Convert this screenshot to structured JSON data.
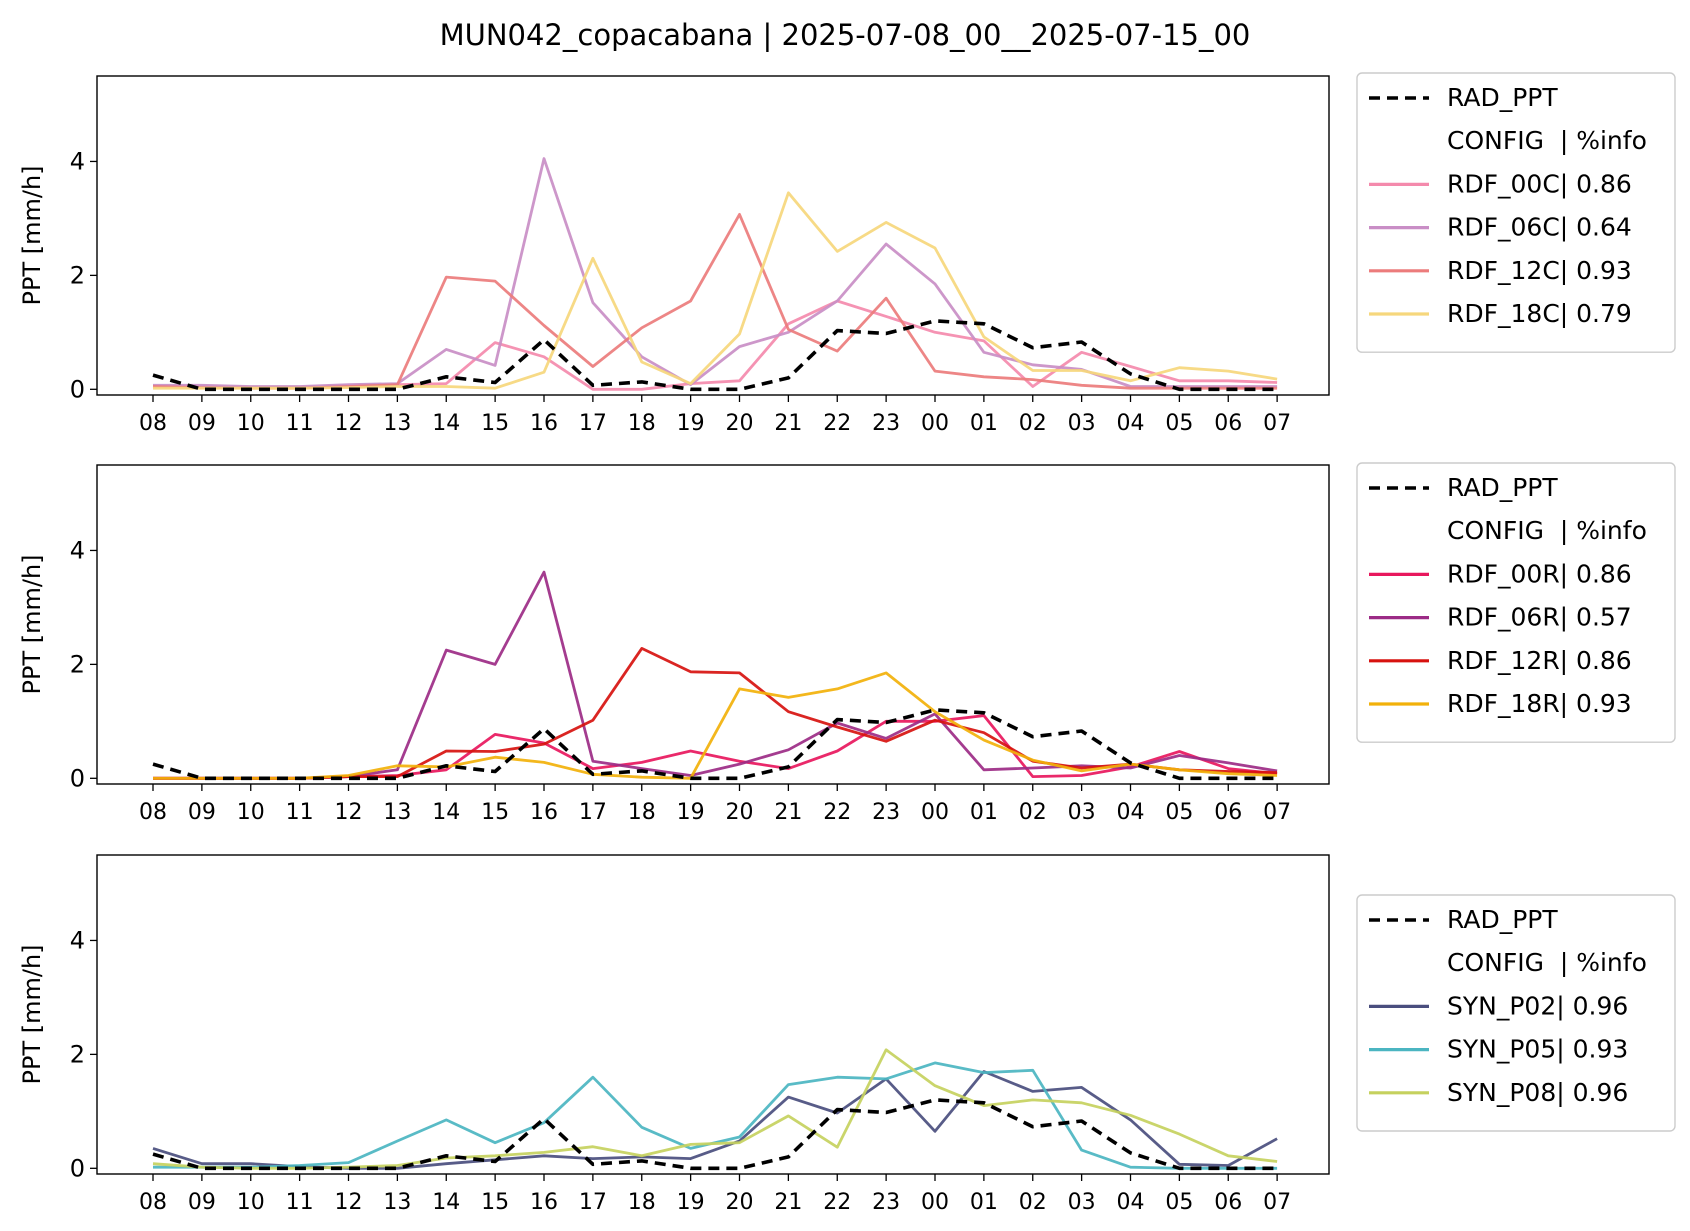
{
  "title": "MUN042_copacabana | 2025-07-08_00__2025-07-15_00",
  "chart_data": [
    {
      "type": "line",
      "ylabel": "PPT [mm/h]",
      "ylim": [
        -0.1,
        5.5
      ],
      "yticks": [
        0,
        2,
        4
      ],
      "categories": [
        "08",
        "09",
        "10",
        "11",
        "12",
        "13",
        "14",
        "15",
        "16",
        "17",
        "18",
        "19",
        "20",
        "21",
        "22",
        "23",
        "00",
        "01",
        "02",
        "03",
        "04",
        "05",
        "06",
        "07"
      ],
      "legend_header": "CONFIG  | %info",
      "legend_position": "outside-right",
      "series": [
        {
          "name": "RAD_PPT",
          "color": "#000000",
          "dashed": true,
          "values": [
            0.25,
            0.0,
            0.0,
            0.0,
            0.0,
            0.0,
            0.22,
            0.12,
            0.87,
            0.07,
            0.13,
            0.0,
            0.0,
            0.2,
            1.03,
            0.98,
            1.2,
            1.15,
            0.73,
            0.83,
            0.27,
            0.0,
            0.0,
            0.0
          ]
        },
        {
          "name": "RDF_00C| 0.86",
          "color": "#f48aac",
          "values": [
            0.05,
            0.05,
            0.03,
            0.03,
            0.06,
            0.08,
            0.1,
            0.82,
            0.57,
            0.0,
            0.0,
            0.1,
            0.15,
            1.15,
            1.55,
            1.28,
            1.0,
            0.85,
            0.05,
            0.65,
            0.4,
            0.15,
            0.15,
            0.12
          ]
        },
        {
          "name": "RDF_06C| 0.64",
          "color": "#c98ec6",
          "values": [
            0.07,
            0.07,
            0.05,
            0.05,
            0.08,
            0.1,
            0.7,
            0.42,
            4.05,
            1.52,
            0.57,
            0.08,
            0.75,
            1.0,
            1.55,
            2.55,
            1.85,
            0.65,
            0.43,
            0.35,
            0.05,
            0.05,
            0.05,
            0.05
          ]
        },
        {
          "name": "RDF_12C| 0.93",
          "color": "#ec7c7c",
          "values": [
            0.05,
            0.03,
            0.02,
            0.02,
            0.05,
            0.08,
            1.97,
            1.9,
            1.12,
            0.4,
            1.08,
            1.55,
            3.07,
            1.05,
            0.67,
            1.6,
            0.32,
            0.22,
            0.17,
            0.07,
            0.02,
            0.02,
            0.02,
            0.02
          ]
        },
        {
          "name": "RDF_18C| 0.79",
          "color": "#f6d77c",
          "values": [
            0.02,
            0.02,
            0.02,
            0.02,
            0.03,
            0.05,
            0.05,
            0.02,
            0.3,
            2.3,
            0.48,
            0.1,
            0.97,
            3.45,
            2.42,
            2.93,
            2.48,
            0.92,
            0.33,
            0.33,
            0.15,
            0.38,
            0.32,
            0.18
          ]
        }
      ]
    },
    {
      "type": "line",
      "ylabel": "PPT [mm/h]",
      "ylim": [
        -0.1,
        5.5
      ],
      "yticks": [
        0,
        2,
        4
      ],
      "categories": [
        "08",
        "09",
        "10",
        "11",
        "12",
        "13",
        "14",
        "15",
        "16",
        "17",
        "18",
        "19",
        "20",
        "21",
        "22",
        "23",
        "00",
        "01",
        "02",
        "03",
        "04",
        "05",
        "06",
        "07"
      ],
      "legend_header": "CONFIG  | %info",
      "legend_position": "outside-right",
      "series": [
        {
          "name": "RAD_PPT",
          "color": "#000000",
          "dashed": true,
          "values": [
            0.25,
            0.0,
            0.0,
            0.0,
            0.0,
            0.0,
            0.22,
            0.12,
            0.87,
            0.07,
            0.13,
            0.0,
            0.0,
            0.2,
            1.03,
            0.98,
            1.2,
            1.15,
            0.73,
            0.83,
            0.27,
            0.0,
            0.0,
            0.0
          ]
        },
        {
          "name": "RDF_00R| 0.86",
          "color": "#e8175d",
          "values": [
            0.0,
            0.0,
            0.0,
            0.0,
            0.03,
            0.05,
            0.15,
            0.77,
            0.62,
            0.17,
            0.28,
            0.48,
            0.3,
            0.17,
            0.48,
            1.0,
            1.0,
            1.1,
            0.03,
            0.05,
            0.2,
            0.47,
            0.17,
            0.08
          ]
        },
        {
          "name": "RDF_06R| 0.57",
          "color": "#9c2b86",
          "values": [
            0.0,
            0.0,
            0.0,
            0.0,
            0.03,
            0.15,
            2.25,
            2.0,
            3.62,
            0.3,
            0.17,
            0.05,
            0.25,
            0.5,
            0.97,
            0.7,
            1.13,
            0.15,
            0.18,
            0.22,
            0.18,
            0.4,
            0.27,
            0.13
          ]
        },
        {
          "name": "RDF_12R| 0.86",
          "color": "#d7120f",
          "values": [
            0.0,
            0.0,
            0.0,
            0.0,
            0.03,
            0.03,
            0.48,
            0.47,
            0.6,
            1.02,
            2.28,
            1.87,
            1.85,
            1.17,
            0.9,
            0.65,
            1.02,
            0.8,
            0.3,
            0.18,
            0.25,
            0.15,
            0.12,
            0.1
          ]
        },
        {
          "name": "RDF_18R| 0.93",
          "color": "#f2b10a",
          "values": [
            0.0,
            0.0,
            0.0,
            0.0,
            0.05,
            0.22,
            0.2,
            0.37,
            0.28,
            0.07,
            0.02,
            0.0,
            1.57,
            1.42,
            1.57,
            1.85,
            1.17,
            0.67,
            0.32,
            0.13,
            0.25,
            0.15,
            0.08,
            0.05
          ]
        }
      ]
    },
    {
      "type": "line",
      "ylabel": "PPT [mm/h]",
      "ylim": [
        -0.1,
        5.5
      ],
      "yticks": [
        0,
        2,
        4
      ],
      "categories": [
        "08",
        "09",
        "10",
        "11",
        "12",
        "13",
        "14",
        "15",
        "16",
        "17",
        "18",
        "19",
        "20",
        "21",
        "22",
        "23",
        "00",
        "01",
        "02",
        "03",
        "04",
        "05",
        "06",
        "07"
      ],
      "legend_header": "CONFIG  | %info",
      "legend_position": "outside-right",
      "series": [
        {
          "name": "RAD_PPT",
          "color": "#000000",
          "dashed": true,
          "values": [
            0.25,
            0.0,
            0.0,
            0.0,
            0.0,
            0.0,
            0.22,
            0.12,
            0.87,
            0.07,
            0.13,
            0.0,
            0.0,
            0.2,
            1.03,
            0.98,
            1.2,
            1.15,
            0.73,
            0.83,
            0.27,
            0.0,
            0.0,
            0.0
          ]
        },
        {
          "name": "SYN_P02| 0.96",
          "color": "#4a4e7e",
          "values": [
            0.35,
            0.08,
            0.08,
            0.03,
            0.0,
            0.0,
            0.08,
            0.15,
            0.22,
            0.17,
            0.2,
            0.17,
            0.48,
            1.25,
            0.97,
            1.57,
            0.65,
            1.7,
            1.35,
            1.42,
            0.85,
            0.07,
            0.05,
            0.52
          ]
        },
        {
          "name": "SYN_P05| 0.93",
          "color": "#4bb5c1",
          "values": [
            0.02,
            0.02,
            0.02,
            0.05,
            0.1,
            0.48,
            0.85,
            0.45,
            0.8,
            1.6,
            0.72,
            0.35,
            0.55,
            1.47,
            1.6,
            1.57,
            1.85,
            1.68,
            1.72,
            0.32,
            0.02,
            0.0,
            0.0,
            0.0
          ]
        },
        {
          "name": "SYN_P08| 0.96",
          "color": "#c5d15e",
          "values": [
            0.08,
            0.02,
            0.0,
            0.0,
            0.02,
            0.05,
            0.18,
            0.22,
            0.28,
            0.38,
            0.22,
            0.42,
            0.45,
            0.92,
            0.37,
            2.08,
            1.45,
            1.1,
            1.2,
            1.15,
            0.93,
            0.6,
            0.22,
            0.12
          ]
        }
      ]
    }
  ]
}
